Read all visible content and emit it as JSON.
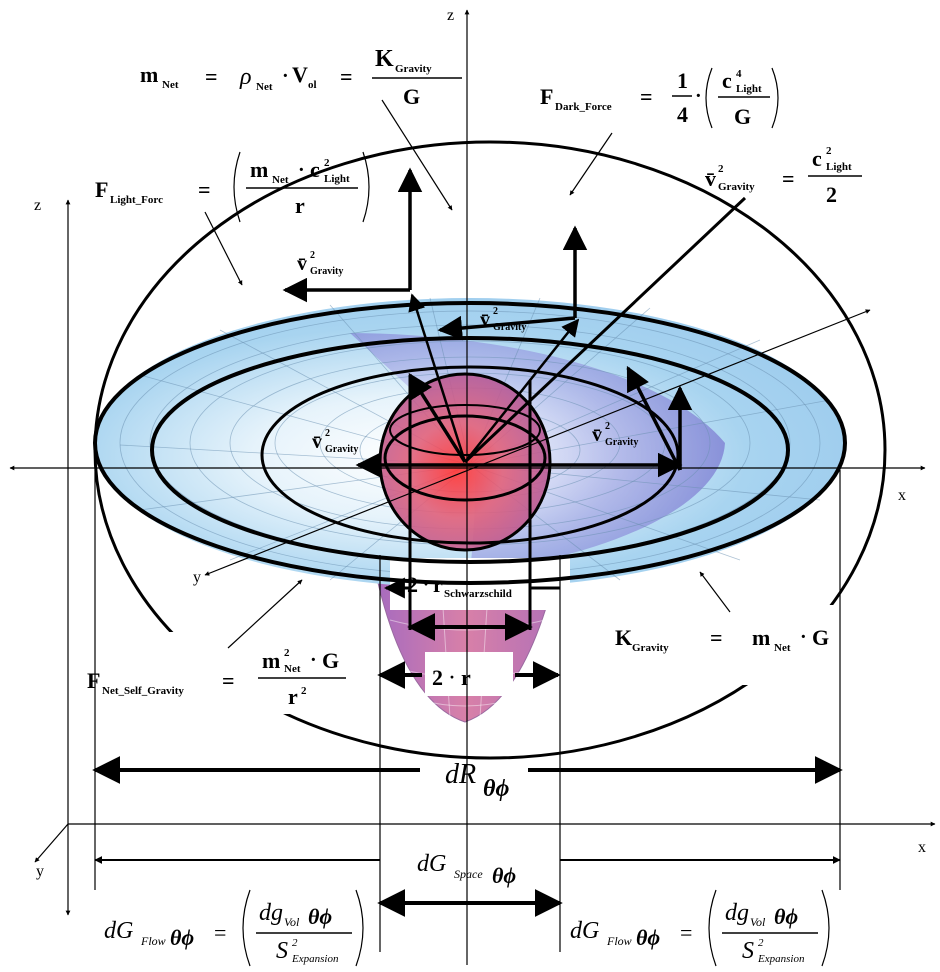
{
  "axes": {
    "z_top": "z",
    "z_left": "z",
    "x_mid": "x",
    "x_bottom": "x",
    "y_mid": "y",
    "y_bottom": "y"
  },
  "eq_mass": {
    "m": "m",
    "m_sub": "Net",
    "eq1": "=",
    "rho": "ρ",
    "rho_sub": "Net",
    "dot": "·",
    "v": "V",
    "v_sub": "ol",
    "eq2": "=",
    "num": "K",
    "num_sub": "Gravity",
    "den": "G"
  },
  "eq_dark": {
    "f": "F",
    "f_sub": "Dark_Force",
    "eq": "=",
    "one": "1",
    "four": "4",
    "dot": "·",
    "c": "c",
    "c_sup": "4",
    "c_sub": "Light",
    "den": "G"
  },
  "eq_light": {
    "f": "F",
    "f_sub": "Light_Forc",
    "eq": "=",
    "m": "m",
    "m_sub": "Net",
    "dot": "·",
    "c": "c",
    "c_sup": "2",
    "c_sub": "Light",
    "den": "r"
  },
  "eq_vsq_right": {
    "v": "v̄",
    "v_sup": "2",
    "v_sub": "Gravity",
    "eq": "=",
    "c": "c",
    "c_sup": "2",
    "c_sub": "Light",
    "den": "2"
  },
  "vlabel": {
    "v": "v̄",
    "sup": "2",
    "sub": "Gravity"
  },
  "eq_net_self": {
    "f": "F",
    "f_sub": "Net_Self_Gravity",
    "eq": "=",
    "m": "m",
    "m_sup": "2",
    "m_sub": "Net",
    "dot": "·",
    "g": "G",
    "r": "r",
    "r_sup": "2"
  },
  "eq_k": {
    "k": "K",
    "k_sub": "Gravity",
    "eq": "=",
    "m": "m",
    "m_sub": "Net",
    "dot": "·",
    "g": "G"
  },
  "label_2rs": {
    "two": "2",
    "dot": "·",
    "r": "r",
    "sub": "Schwarzschild"
  },
  "label_2r": {
    "two": "2",
    "dot": "·",
    "r": "r"
  },
  "dR": {
    "d": "dR",
    "sub": "θϕ"
  },
  "dGspace": {
    "d": "dG",
    "sub": "Space",
    "tail": "θϕ"
  },
  "dGflow": {
    "d": "dG",
    "sub": "Flow",
    "tail": "θϕ",
    "eq": "=",
    "num": "dg",
    "num_sub": "Vol",
    "num_tail": "θϕ",
    "den": "S",
    "den_sup": "2",
    "den_sub": "Expansion"
  },
  "colors": {
    "disc_light": "#e6f3fb",
    "disc_mid": "#9fcdee",
    "disc_dark": "#7aa8e8",
    "violet": "#8b7fd8",
    "core_pink": "#e0607a",
    "core_red": "#ff3030",
    "funnel": "#c870a0"
  }
}
